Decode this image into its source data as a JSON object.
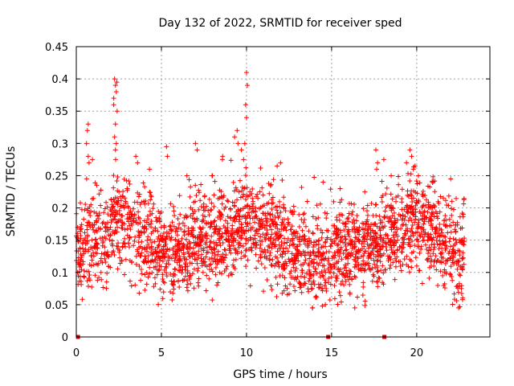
{
  "chart_data": {
    "type": "scatter",
    "title": "Day 132 of 2022, SRMTID for receiver sped",
    "xlabel": "GPS time / hours",
    "ylabel": "SRMTID / TECUs",
    "xlim": [
      0,
      24.3
    ],
    "ylim": [
      0,
      0.45
    ],
    "xticks": [
      0,
      5,
      10,
      15,
      20
    ],
    "xtick_labels": [
      "0",
      "5",
      "10",
      "15",
      "20"
    ],
    "yticks": [
      0,
      0.05,
      0.1,
      0.15,
      0.2,
      0.25,
      0.3,
      0.35,
      0.4,
      0.45
    ],
    "ytick_labels": [
      "0",
      "0.05",
      "0.1",
      "0.15",
      "0.2",
      "0.25",
      "0.3",
      "0.35",
      "0.4",
      "0.45"
    ],
    "grid": true,
    "marker": "+",
    "color": "#ff0000",
    "zero_points": [
      0.1,
      14.8,
      18.1
    ],
    "trend": [
      [
        0.0,
        0.12
      ],
      [
        1.0,
        0.15
      ],
      [
        2.0,
        0.15
      ],
      [
        2.3,
        0.2
      ],
      [
        3.0,
        0.16
      ],
      [
        4.0,
        0.15
      ],
      [
        5.0,
        0.13
      ],
      [
        6.0,
        0.13
      ],
      [
        7.0,
        0.15
      ],
      [
        8.0,
        0.15
      ],
      [
        9.0,
        0.17
      ],
      [
        10.0,
        0.18
      ],
      [
        11.0,
        0.17
      ],
      [
        12.0,
        0.15
      ],
      [
        13.0,
        0.13
      ],
      [
        14.0,
        0.12
      ],
      [
        15.0,
        0.12
      ],
      [
        16.0,
        0.13
      ],
      [
        17.0,
        0.14
      ],
      [
        18.0,
        0.15
      ],
      [
        19.0,
        0.16
      ],
      [
        20.0,
        0.18
      ],
      [
        21.0,
        0.16
      ],
      [
        22.0,
        0.13
      ],
      [
        22.8,
        0.12
      ]
    ],
    "spikes": [
      [
        2.25,
        0.4
      ],
      [
        2.3,
        0.39
      ],
      [
        2.35,
        0.38
      ],
      [
        2.2,
        0.37
      ],
      [
        2.4,
        0.35
      ],
      [
        2.3,
        0.33
      ],
      [
        2.25,
        0.31
      ],
      [
        2.35,
        0.3
      ],
      [
        2.3,
        0.29
      ],
      [
        2.2,
        0.36
      ],
      [
        2.38,
        0.395
      ],
      [
        10.0,
        0.41
      ],
      [
        10.05,
        0.39
      ],
      [
        9.95,
        0.36
      ],
      [
        10.0,
        0.34
      ],
      [
        9.9,
        0.3
      ],
      [
        0.7,
        0.33
      ],
      [
        0.65,
        0.32
      ],
      [
        0.6,
        0.3
      ],
      [
        0.7,
        0.28
      ],
      [
        0.75,
        0.27
      ],
      [
        9.3,
        0.31
      ],
      [
        9.5,
        0.3
      ],
      [
        9.7,
        0.29
      ],
      [
        9.45,
        0.32
      ],
      [
        8.6,
        0.28
      ],
      [
        7.0,
        0.3
      ],
      [
        7.1,
        0.29
      ],
      [
        5.3,
        0.295
      ],
      [
        5.35,
        0.28
      ],
      [
        3.5,
        0.28
      ],
      [
        3.6,
        0.27
      ],
      [
        17.6,
        0.29
      ],
      [
        17.7,
        0.27
      ],
      [
        17.65,
        0.26
      ],
      [
        19.6,
        0.29
      ],
      [
        19.7,
        0.28
      ],
      [
        19.4,
        0.27
      ],
      [
        19.8,
        0.26
      ],
      [
        20.1,
        0.25
      ],
      [
        22.0,
        0.245
      ],
      [
        15.5,
        0.23
      ],
      [
        14.5,
        0.24
      ],
      [
        12.0,
        0.27
      ],
      [
        11.8,
        0.265
      ],
      [
        6.5,
        0.25
      ],
      [
        4.3,
        0.26
      ],
      [
        8.0,
        0.25
      ],
      [
        18.5,
        0.25
      ]
    ],
    "n_points": 2600,
    "seed": 132
  }
}
